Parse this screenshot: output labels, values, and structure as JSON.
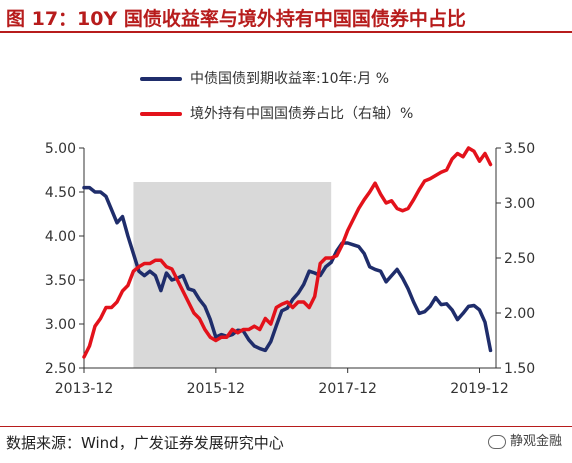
{
  "header": {
    "title": "图 17：10Y 国债收益率与境外持有中国国债券中占比"
  },
  "legend": [
    {
      "label": "中债国债到期收益率:10年:月 %",
      "color": "#1f2d6b"
    },
    {
      "label": "境外持有中国国债券占比（右轴）%",
      "color": "#e3121b"
    }
  ],
  "footer": {
    "source": "数据来源：Wind，广发证券发展研究中心",
    "watermark": "静观金融"
  },
  "chart_data": {
    "type": "line",
    "x_ticks": [
      "2013-12",
      "2015-12",
      "2017-12",
      "2019-12"
    ],
    "x_range": [
      "2013-12",
      "2020-03"
    ],
    "y_left": {
      "range": [
        2.5,
        5.0
      ],
      "ticks": [
        "2.50",
        "3.00",
        "3.50",
        "4.00",
        "4.50",
        "5.00"
      ]
    },
    "y_right": {
      "range": [
        1.5,
        3.5
      ],
      "ticks": [
        "1.50",
        "2.00",
        "2.50",
        "3.00",
        "3.50"
      ]
    },
    "shaded_region": [
      "2014-09",
      "2017-09"
    ],
    "series": [
      {
        "name": "中债国债到期收益率:10年:月 %",
        "axis": "left",
        "color": "#1f2d6b",
        "x": [
          "2013-12",
          "2014-01",
          "2014-02",
          "2014-03",
          "2014-04",
          "2014-05",
          "2014-06",
          "2014-07",
          "2014-08",
          "2014-09",
          "2014-10",
          "2014-11",
          "2014-12",
          "2015-01",
          "2015-02",
          "2015-03",
          "2015-04",
          "2015-05",
          "2015-06",
          "2015-07",
          "2015-08",
          "2015-09",
          "2015-10",
          "2015-11",
          "2015-12",
          "2016-01",
          "2016-02",
          "2016-03",
          "2016-04",
          "2016-05",
          "2016-06",
          "2016-07",
          "2016-08",
          "2016-09",
          "2016-10",
          "2016-11",
          "2016-12",
          "2017-01",
          "2017-02",
          "2017-03",
          "2017-04",
          "2017-05",
          "2017-06",
          "2017-07",
          "2017-08",
          "2017-09",
          "2017-10",
          "2017-11",
          "2017-12",
          "2018-01",
          "2018-02",
          "2018-03",
          "2018-04",
          "2018-05",
          "2018-06",
          "2018-07",
          "2018-08",
          "2018-09",
          "2018-10",
          "2018-11",
          "2018-12",
          "2019-01",
          "2019-02",
          "2019-03",
          "2019-04",
          "2019-05",
          "2019-06",
          "2019-07",
          "2019-08",
          "2019-09",
          "2019-10",
          "2019-11",
          "2019-12",
          "2020-01",
          "2020-02"
        ],
        "y": [
          4.55,
          4.55,
          4.5,
          4.5,
          4.45,
          4.3,
          4.15,
          4.22,
          4.0,
          3.8,
          3.6,
          3.55,
          3.6,
          3.55,
          3.38,
          3.58,
          3.5,
          3.52,
          3.55,
          3.4,
          3.38,
          3.28,
          3.2,
          3.05,
          2.85,
          2.88,
          2.86,
          2.88,
          2.93,
          2.92,
          2.82,
          2.75,
          2.72,
          2.7,
          2.8,
          2.98,
          3.15,
          3.18,
          3.28,
          3.35,
          3.45,
          3.6,
          3.58,
          3.55,
          3.65,
          3.7,
          3.83,
          3.92,
          3.92,
          3.9,
          3.88,
          3.8,
          3.65,
          3.62,
          3.6,
          3.48,
          3.55,
          3.62,
          3.52,
          3.4,
          3.25,
          3.12,
          3.14,
          3.2,
          3.3,
          3.22,
          3.23,
          3.16,
          3.05,
          3.12,
          3.2,
          3.21,
          3.16,
          3.02,
          2.7
        ]
      },
      {
        "name": "境外持有中国国债券占比（右轴）%",
        "axis": "right",
        "color": "#e3121b",
        "x": [
          "2013-12",
          "2014-01",
          "2014-02",
          "2014-03",
          "2014-04",
          "2014-05",
          "2014-06",
          "2014-07",
          "2014-08",
          "2014-09",
          "2014-10",
          "2014-11",
          "2014-12",
          "2015-01",
          "2015-02",
          "2015-03",
          "2015-04",
          "2015-05",
          "2015-06",
          "2015-07",
          "2015-08",
          "2015-09",
          "2015-10",
          "2015-11",
          "2015-12",
          "2016-01",
          "2016-02",
          "2016-03",
          "2016-04",
          "2016-05",
          "2016-06",
          "2016-07",
          "2016-08",
          "2016-09",
          "2016-10",
          "2016-11",
          "2016-12",
          "2017-01",
          "2017-02",
          "2017-03",
          "2017-04",
          "2017-05",
          "2017-06",
          "2017-07",
          "2017-08",
          "2017-09",
          "2017-10",
          "2017-11",
          "2017-12",
          "2018-01",
          "2018-02",
          "2018-03",
          "2018-04",
          "2018-05",
          "2018-06",
          "2018-07",
          "2018-08",
          "2018-09",
          "2018-10",
          "2018-11",
          "2018-12",
          "2019-01",
          "2019-02",
          "2019-03",
          "2019-04",
          "2019-05",
          "2019-06",
          "2019-07",
          "2019-08",
          "2019-09",
          "2019-10",
          "2019-11",
          "2019-12",
          "2020-01",
          "2020-02"
        ],
        "y": [
          1.6,
          1.7,
          1.88,
          1.95,
          2.05,
          2.05,
          2.1,
          2.2,
          2.25,
          2.38,
          2.42,
          2.45,
          2.45,
          2.48,
          2.48,
          2.42,
          2.4,
          2.3,
          2.2,
          2.1,
          2.0,
          1.95,
          1.85,
          1.78,
          1.75,
          1.78,
          1.78,
          1.85,
          1.82,
          1.85,
          1.85,
          1.88,
          1.85,
          1.95,
          1.9,
          2.05,
          2.08,
          2.1,
          2.05,
          2.1,
          2.1,
          2.05,
          2.15,
          2.45,
          2.5,
          2.5,
          2.52,
          2.62,
          2.75,
          2.85,
          2.95,
          3.03,
          3.1,
          3.18,
          3.08,
          3.0,
          3.02,
          2.95,
          2.93,
          2.95,
          3.03,
          3.12,
          3.2,
          3.22,
          3.25,
          3.28,
          3.3,
          3.4,
          3.45,
          3.42,
          3.5,
          3.47,
          3.38,
          3.45,
          3.35
        ]
      }
    ]
  }
}
